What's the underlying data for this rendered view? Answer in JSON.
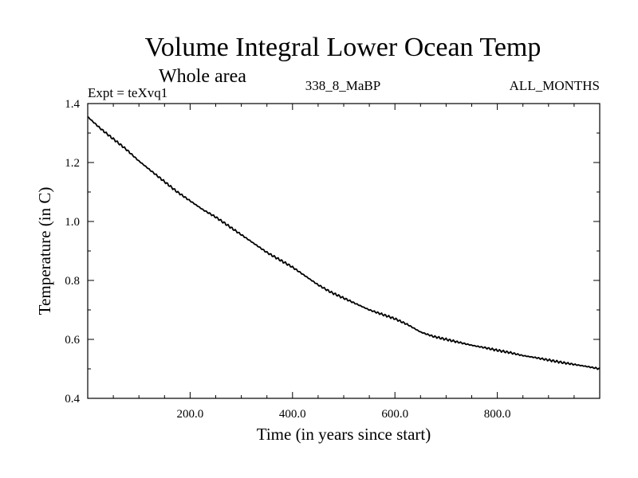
{
  "chart_data": {
    "type": "line",
    "title": "Volume Integral Lower Ocean Temp",
    "subtitle": "Whole area",
    "annotations": {
      "left": "Expt = teXvq1",
      "center": "338_8_MaBP",
      "right": "ALL_MONTHS"
    },
    "xlabel": "Time (in years since start)",
    "ylabel": "Temperature (in C)",
    "xlim": [
      0,
      1000
    ],
    "ylim": [
      0.4,
      1.4
    ],
    "x_ticks": [
      200,
      400,
      600,
      800
    ],
    "x_tick_labels": [
      "200.0",
      "400.0",
      "600.0",
      "800.0"
    ],
    "x_minor_step": 50,
    "y_ticks": [
      0.4,
      0.6,
      0.8,
      1.0,
      1.2,
      1.4
    ],
    "y_tick_labels": [
      "0.4",
      "0.6",
      "0.8",
      "1.0",
      "1.2",
      "1.4"
    ],
    "y_minor_step": 0.1,
    "grid": false,
    "series": [
      {
        "name": "Volume Integral Lower Ocean Temp",
        "x": [
          0,
          25,
          50,
          75,
          100,
          125,
          150,
          175,
          200,
          225,
          250,
          275,
          300,
          325,
          350,
          375,
          400,
          425,
          450,
          475,
          500,
          525,
          550,
          575,
          600,
          625,
          650,
          675,
          700,
          725,
          750,
          775,
          800,
          825,
          850,
          875,
          900,
          925,
          950,
          975,
          1000
        ],
        "values": [
          1.355,
          1.315,
          1.28,
          1.245,
          1.205,
          1.17,
          1.135,
          1.1,
          1.07,
          1.04,
          1.015,
          0.985,
          0.955,
          0.925,
          0.895,
          0.87,
          0.845,
          0.815,
          0.785,
          0.76,
          0.74,
          0.72,
          0.7,
          0.685,
          0.67,
          0.65,
          0.625,
          0.61,
          0.6,
          0.59,
          0.58,
          0.572,
          0.563,
          0.555,
          0.545,
          0.538,
          0.53,
          0.522,
          0.515,
          0.508,
          0.5
        ]
      }
    ]
  }
}
